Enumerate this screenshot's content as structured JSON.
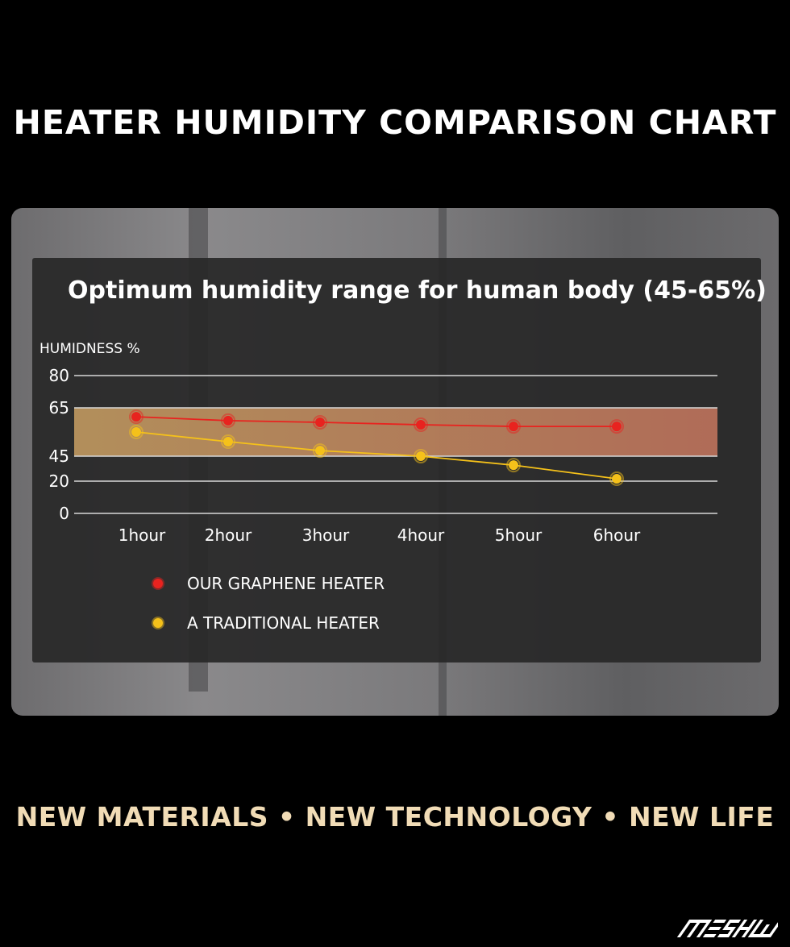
{
  "title": "HEATER HUMIDITY COMPARISON CHART",
  "footer": "NEW MATERIALS •  NEW TECHNOLOGY • NEW LIFE",
  "logo": "MESHOW",
  "chart_data": {
    "type": "line",
    "title": "Optimum humidity range for human body (45-65%)",
    "ylabel": "HUMIDNESS %",
    "xlabel": "",
    "categories": [
      "1hour",
      "2hour",
      "3hour",
      "4hour",
      "5hour",
      "6hour"
    ],
    "yticks": [
      0,
      20,
      45,
      65,
      80
    ],
    "ylim": [
      0,
      80
    ],
    "grid": true,
    "highlight_band": {
      "from": 45,
      "to": 65,
      "colors": [
        "#c9a063",
        "#c7775f"
      ]
    },
    "legend_position": "bottom-left",
    "series": [
      {
        "name": "OUR GRAPHENE HEATER",
        "color": "#e8231f",
        "values": [
          61.3,
          59.7,
          59,
          58,
          57.3,
          57.3
        ]
      },
      {
        "name": "A TRADITIONAL HEATER",
        "color": "#f5c11a",
        "values": [
          55,
          51,
          47.3,
          45,
          36,
          22.4
        ]
      }
    ]
  }
}
